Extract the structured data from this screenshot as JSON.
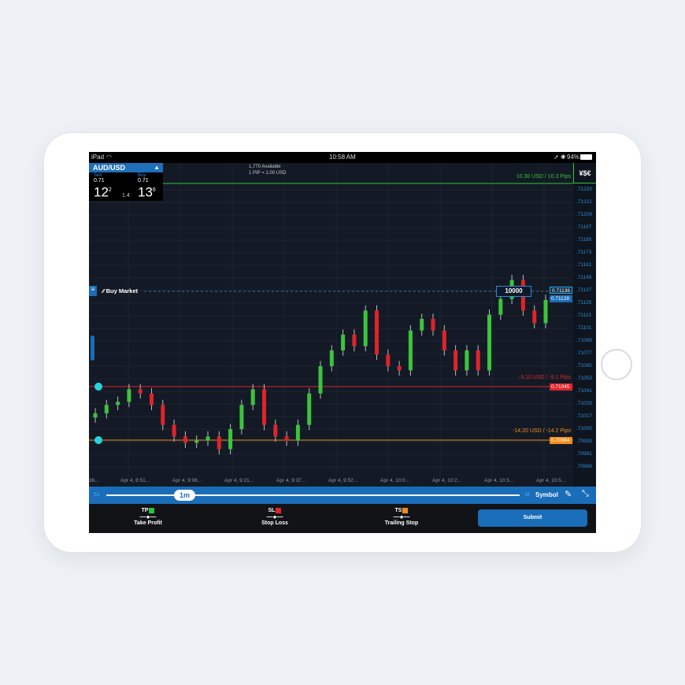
{
  "status": {
    "device": "iPad",
    "time": "10:58 AM",
    "battery": "94%"
  },
  "instrument": {
    "pair": "AUD/USD",
    "sell_label": "Sell",
    "buy_label": "Buy",
    "sell_prefix": "0.71",
    "sell_big": "12",
    "sell_sup": "2",
    "buy_prefix": "0.71",
    "buy_big": "13",
    "buy_sup": "6",
    "spread": "1.4"
  },
  "account": {
    "available": "1,770 Available",
    "pip": "1 PIP = 1.00 USD"
  },
  "currency_button": "¥$€",
  "order": {
    "type": "Buy Market",
    "quantity": "10000",
    "current_price": "0.71136",
    "last_price": "0.71128"
  },
  "lines": {
    "take_profit": {
      "label": "10.30 USD / 10.3 Pips",
      "color": "#2ec43a"
    },
    "stop_loss": {
      "label": "-9.10 USD / -9.1 Pips",
      "price": "0.71045",
      "color": "#e0232a"
    },
    "trailing_stop": {
      "label": "-14.20 USD / -14.2 Pips",
      "price": "0.70994",
      "color": "#f08c1a"
    }
  },
  "chart_data": {
    "type": "candlestick",
    "y_ticks": [
      ".71233",
      ".71221",
      ".71209",
      ".71197",
      ".71185",
      ".71173",
      ".71161",
      ".71149",
      ".71137",
      ".71125",
      ".71113",
      ".71101",
      ".71089",
      ".71077",
      ".71065",
      ".71053",
      ".71041",
      ".71029",
      ".71017",
      ".71005",
      ".70993",
      ".70981",
      ".70969"
    ],
    "x_ticks": [
      "36...",
      "Apr 4, 8:51...",
      "Apr 4, 9:06...",
      "Apr 4, 9:21...",
      "Apr 4, 9:37...",
      "Apr 4, 9:52...",
      "Apr 4, 10:0...",
      "Apr 4, 10:2...",
      "Apr 4, 10:3...",
      "Apr 4, 10:5..."
    ],
    "closes": [
      0.7102,
      0.71028,
      0.71031,
      0.71043,
      0.71039,
      0.71028,
      0.71009,
      0.70998,
      0.70992,
      0.70994,
      0.70998,
      0.70986,
      0.71005,
      0.71028,
      0.71043,
      0.71009,
      0.70998,
      0.70994,
      0.71009,
      0.71039,
      0.71065,
      0.7108,
      0.71095,
      0.71084,
      0.71118,
      0.71076,
      0.71065,
      0.71061,
      0.71099,
      0.7111,
      0.71099,
      0.7108,
      0.71061,
      0.7108,
      0.71061,
      0.71114,
      0.71129,
      0.71147,
      0.71118,
      0.71106,
      0.71128
    ],
    "up_color": "#3cc43c",
    "down_color": "#e0232a"
  },
  "timeframe": {
    "min": "5s",
    "selected": "1m",
    "max": "M",
    "symbol": "Symbol"
  },
  "bottom": {
    "tp": "TP",
    "tp_label": "Take Profit",
    "sl": "SL",
    "sl_label": "Stop Loss",
    "ts": "TS",
    "ts_label": "Trailing Stop",
    "submit": "Submit"
  }
}
